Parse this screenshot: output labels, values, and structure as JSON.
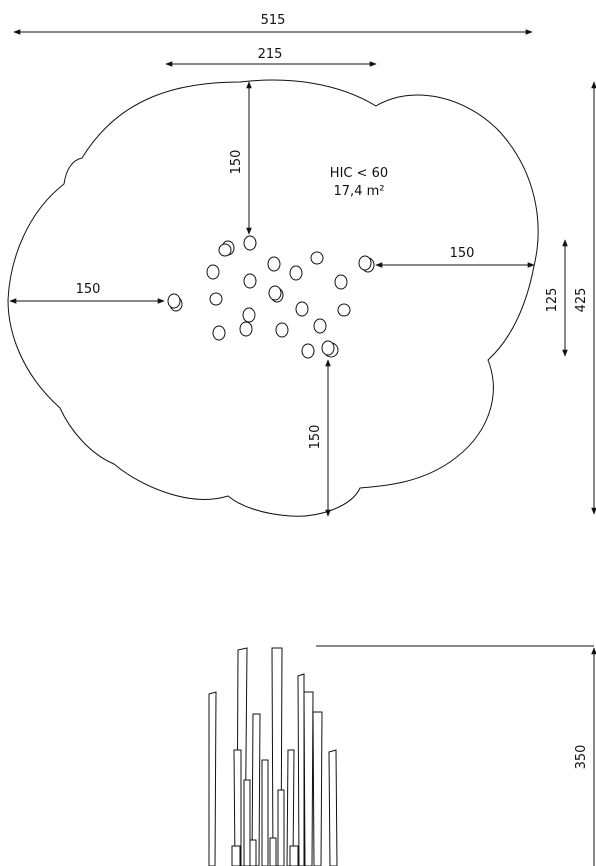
{
  "dimensions": {
    "overall_width": "515",
    "inner_width": "215",
    "top_gap": "150",
    "right_gap": "150",
    "left_gap": "150",
    "bottom_gap": "150",
    "cluster_height": "125",
    "overall_depth": "425",
    "height": "350"
  },
  "area_label": {
    "hic": "HIC < 60",
    "area": "17,4 m²"
  },
  "colors": {
    "line": "#111111",
    "background": "#ffffff"
  }
}
